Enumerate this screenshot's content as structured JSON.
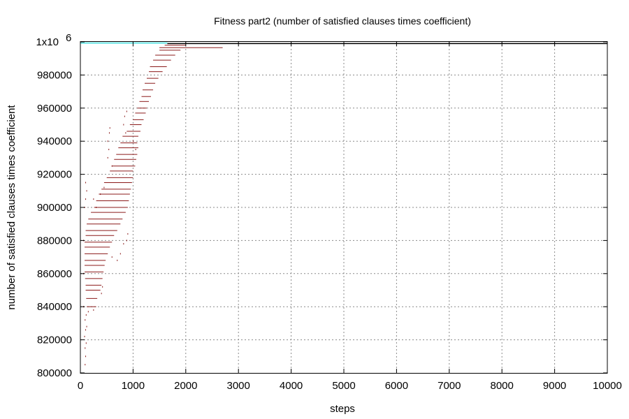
{
  "chart_data": {
    "type": "scatter",
    "title": "Fitness part2 (number of satisfied clauses times coefficient)",
    "xlabel": "steps",
    "ylabel": "number of satisfied clauses times coefficient",
    "xlim": [
      0,
      10000
    ],
    "ylim": [
      800000,
      1000000
    ],
    "x_ticks": [
      "0",
      "1000",
      "2000",
      "3000",
      "4000",
      "5000",
      "6000",
      "7000",
      "8000",
      "9000",
      "10000"
    ],
    "y_ticks": [
      "800000",
      "820000",
      "840000",
      "860000",
      "880000",
      "900000",
      "920000",
      "940000",
      "960000",
      "980000",
      "1x10"
    ],
    "y_top_exponent": "6",
    "grid": true,
    "legend": "none",
    "series": [
      {
        "color": "#8b1a1a",
        "style": "horizontal dashes (plateaus)",
        "segments": [
          {
            "x0": 120,
            "x1": 300,
            "y": 840000
          },
          {
            "x0": 110,
            "x1": 320,
            "y": 845000
          },
          {
            "x0": 100,
            "x1": 380,
            "y": 850000
          },
          {
            "x0": 100,
            "x1": 400,
            "y": 853000
          },
          {
            "x0": 90,
            "x1": 420,
            "y": 857000
          },
          {
            "x0": 80,
            "x1": 440,
            "y": 861000
          },
          {
            "x0": 80,
            "x1": 460,
            "y": 865000
          },
          {
            "x0": 80,
            "x1": 480,
            "y": 868000
          },
          {
            "x0": 80,
            "x1": 520,
            "y": 872000
          },
          {
            "x0": 80,
            "x1": 560,
            "y": 876000
          },
          {
            "x0": 80,
            "x1": 600,
            "y": 879000
          },
          {
            "x0": 100,
            "x1": 640,
            "y": 883000
          },
          {
            "x0": 100,
            "x1": 700,
            "y": 886000
          },
          {
            "x0": 120,
            "x1": 760,
            "y": 890000
          },
          {
            "x0": 150,
            "x1": 800,
            "y": 893000
          },
          {
            "x0": 200,
            "x1": 860,
            "y": 897000
          },
          {
            "x0": 260,
            "x1": 900,
            "y": 900000
          },
          {
            "x0": 300,
            "x1": 920,
            "y": 904000
          },
          {
            "x0": 350,
            "x1": 940,
            "y": 908000
          },
          {
            "x0": 400,
            "x1": 960,
            "y": 911000
          },
          {
            "x0": 450,
            "x1": 980,
            "y": 915000
          },
          {
            "x0": 500,
            "x1": 1000,
            "y": 918000
          },
          {
            "x0": 560,
            "x1": 1000,
            "y": 922000
          },
          {
            "x0": 600,
            "x1": 1040,
            "y": 925000
          },
          {
            "x0": 640,
            "x1": 1060,
            "y": 929000
          },
          {
            "x0": 680,
            "x1": 1080,
            "y": 932000
          },
          {
            "x0": 720,
            "x1": 1100,
            "y": 936000
          },
          {
            "x0": 760,
            "x1": 1080,
            "y": 939000
          },
          {
            "x0": 800,
            "x1": 1100,
            "y": 943000
          },
          {
            "x0": 880,
            "x1": 1140,
            "y": 946000
          },
          {
            "x0": 940,
            "x1": 1160,
            "y": 950000
          },
          {
            "x0": 1000,
            "x1": 1200,
            "y": 953000
          },
          {
            "x0": 1040,
            "x1": 1240,
            "y": 957000
          },
          {
            "x0": 1080,
            "x1": 1260,
            "y": 960000
          },
          {
            "x0": 1120,
            "x1": 1300,
            "y": 964000
          },
          {
            "x0": 1160,
            "x1": 1340,
            "y": 967000
          },
          {
            "x0": 1180,
            "x1": 1380,
            "y": 971000
          },
          {
            "x0": 1220,
            "x1": 1420,
            "y": 975000
          },
          {
            "x0": 1260,
            "x1": 1480,
            "y": 978000
          },
          {
            "x0": 1300,
            "x1": 1560,
            "y": 982000
          },
          {
            "x0": 1320,
            "x1": 1640,
            "y": 985000
          },
          {
            "x0": 1380,
            "x1": 1720,
            "y": 989000
          },
          {
            "x0": 1420,
            "x1": 1800,
            "y": 992000
          },
          {
            "x0": 1500,
            "x1": 1900,
            "y": 995000
          },
          {
            "x0": 1500,
            "x1": 2700,
            "y": 996500
          },
          {
            "x0": 1600,
            "x1": 2000,
            "y": 998000
          }
        ],
        "points": [
          {
            "x": 90,
            "y": 805000
          },
          {
            "x": 100,
            "y": 810000
          },
          {
            "x": 90,
            "y": 815000
          },
          {
            "x": 110,
            "y": 818000
          },
          {
            "x": 80,
            "y": 822000
          },
          {
            "x": 100,
            "y": 826000
          },
          {
            "x": 120,
            "y": 828000
          },
          {
            "x": 90,
            "y": 832000
          },
          {
            "x": 110,
            "y": 835000
          },
          {
            "x": 150,
            "y": 837000
          },
          {
            "x": 60,
            "y": 840000
          },
          {
            "x": 250,
            "y": 838000
          },
          {
            "x": 60,
            "y": 860000
          },
          {
            "x": 60,
            "y": 880000
          },
          {
            "x": 80,
            "y": 900000
          },
          {
            "x": 100,
            "y": 905000
          },
          {
            "x": 120,
            "y": 910000
          },
          {
            "x": 100,
            "y": 915000
          },
          {
            "x": 400,
            "y": 848000
          },
          {
            "x": 420,
            "y": 852000
          },
          {
            "x": 300,
            "y": 900000
          },
          {
            "x": 250,
            "y": 905000
          },
          {
            "x": 380,
            "y": 908000
          },
          {
            "x": 450,
            "y": 912000
          },
          {
            "x": 520,
            "y": 930000
          },
          {
            "x": 540,
            "y": 935000
          },
          {
            "x": 520,
            "y": 940000
          },
          {
            "x": 550,
            "y": 945000
          },
          {
            "x": 560,
            "y": 948000
          },
          {
            "x": 600,
            "y": 925000
          },
          {
            "x": 600,
            "y": 870000
          },
          {
            "x": 700,
            "y": 868000
          },
          {
            "x": 760,
            "y": 872000
          },
          {
            "x": 820,
            "y": 878000
          },
          {
            "x": 880,
            "y": 880000
          },
          {
            "x": 900,
            "y": 884000
          },
          {
            "x": 820,
            "y": 950000
          },
          {
            "x": 840,
            "y": 955000
          },
          {
            "x": 880,
            "y": 958000
          },
          {
            "x": 860,
            "y": 945000
          },
          {
            "x": 1000,
            "y": 940000
          },
          {
            "x": 1050,
            "y": 935000
          }
        ]
      },
      {
        "color": "#40e0e0",
        "style": "line",
        "x": [
          0,
          1650
        ],
        "y": [
          999300,
          999300
        ]
      },
      {
        "color": "#000000",
        "style": "line",
        "x": [
          1650,
          10000
        ],
        "y": [
          999000,
          999000
        ]
      }
    ]
  }
}
